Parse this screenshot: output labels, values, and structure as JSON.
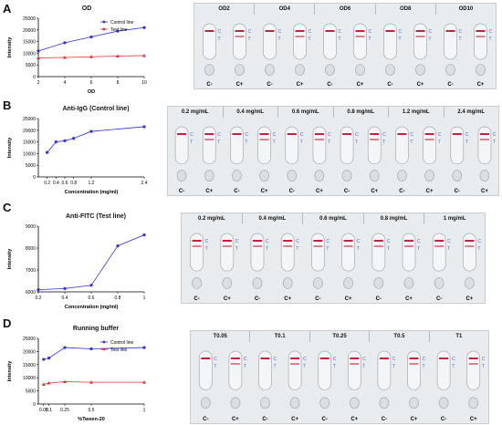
{
  "panels": [
    {
      "letter": "A",
      "chart_data": {
        "type": "line",
        "title": "OD",
        "xlabel": "OD",
        "ylabel": "Intensity",
        "x": [
          2,
          4,
          6,
          8,
          10
        ],
        "xticks": [
          "2",
          "4",
          "6",
          "8",
          "10"
        ],
        "xlim": [
          2,
          10
        ],
        "ylim": [
          0,
          25000
        ],
        "yticks": [
          "0",
          "5000",
          "10000",
          "15000",
          "20000",
          "25000"
        ],
        "legend": "top-right",
        "series": [
          {
            "name": "Control line",
            "color": "#2e2ee0",
            "marker": "circle",
            "values": [
              11000,
              14500,
              17000,
              19500,
              21000
            ]
          },
          {
            "name": "Test line",
            "color": "#e03030",
            "marker": "triangle",
            "values": [
              8000,
              8200,
              8500,
              8800,
              9000
            ]
          }
        ]
      },
      "strip_labels": [
        "OD2",
        "OD4",
        "OD6",
        "OD8",
        "OD10"
      ],
      "strip_bottom": [
        "C-",
        "C+",
        "C-",
        "C+",
        "C-",
        "C+",
        "C-",
        "C+",
        "C-",
        "C+"
      ]
    },
    {
      "letter": "B",
      "chart_data": {
        "type": "line",
        "title": "Anti-IgG (Control line)",
        "xlabel": "Concentration (mg/ml)",
        "ylabel": "Intensity",
        "x": [
          0.2,
          0.4,
          0.6,
          0.8,
          1.2,
          2.4
        ],
        "xticks": [
          "0.2",
          "0.4",
          "0.6",
          "0.8",
          "1.2",
          "2.4"
        ],
        "xlim": [
          0,
          2.4
        ],
        "ylim": [
          0,
          25000
        ],
        "yticks": [
          "0",
          "5000",
          "10000",
          "15000",
          "20000",
          "25000"
        ],
        "series": [
          {
            "name": "",
            "color": "#2e2ee0",
            "marker": "circle",
            "values": [
              10500,
              15000,
              15500,
              16500,
              19500,
              21500
            ]
          }
        ]
      },
      "strip_labels": [
        "0.2 mg/mL",
        "0.4 mg/mL",
        "0.6 mg/mL",
        "0.8 mg/mL",
        "1.2 mg/mL",
        "2.4 mg/mL"
      ],
      "strip_bottom": [
        "C-",
        "C+",
        "C-",
        "C+",
        "C-",
        "C+",
        "C-",
        "C+",
        "C-",
        "C+",
        "C-",
        "C+"
      ]
    },
    {
      "letter": "C",
      "chart_data": {
        "type": "line",
        "title": "Anti-FITC (Test line)",
        "xlabel": "Concentration (mg/ml)",
        "ylabel": "Intensity",
        "x": [
          0.2,
          0.4,
          0.6,
          0.8,
          1
        ],
        "xticks": [
          "0.2",
          "0.4",
          "0.6",
          "0.8",
          "1"
        ],
        "xlim": [
          0.2,
          1
        ],
        "ylim": [
          6000,
          9000
        ],
        "yticks": [
          "6000",
          "7000",
          "8000",
          "9000"
        ],
        "series": [
          {
            "name": "",
            "color": "#2e2ee0",
            "marker": "circle",
            "values": [
              6100,
              6150,
              6300,
              8100,
              8600
            ]
          }
        ]
      },
      "strip_labels": [
        "0.2 mg/mL",
        "0.4 mg/mL",
        "0.6 mg/mL",
        "0.8 mg/mL",
        "1 mg/mL"
      ],
      "strip_bottom": [
        "C-",
        "C+",
        "C-",
        "C+",
        "C-",
        "C+",
        "C-",
        "C+",
        "C-",
        "C+"
      ]
    },
    {
      "letter": "D",
      "chart_data": {
        "type": "line",
        "title": "Running buffer",
        "xlabel": "%Tween-20",
        "ylabel": "Intensity",
        "x": [
          0.05,
          0.1,
          0.25,
          0.5,
          1
        ],
        "xticks": [
          "0.05",
          "0.1",
          "0.25",
          "0.5",
          "1"
        ],
        "xlim": [
          0,
          1
        ],
        "ylim": [
          0,
          25000
        ],
        "yticks": [
          "0",
          "5000",
          "10000",
          "15000",
          "20000",
          "25000"
        ],
        "legend": "top-right",
        "series": [
          {
            "name": "Control line",
            "color": "#2e2ee0",
            "marker": "circle",
            "values": [
              17000,
              17500,
              21500,
              21000,
              21500
            ]
          },
          {
            "name": "Test line",
            "color": "#e03030",
            "marker": "triangle",
            "values": [
              7500,
              8000,
              8500,
              8300,
              8300
            ]
          }
        ]
      },
      "strip_labels": [
        "T0.05",
        "T0.1",
        "T0.25",
        "T0.5",
        "T1"
      ],
      "strip_bottom": [
        "C-",
        "C+",
        "C-",
        "C+",
        "C-",
        "C+",
        "C-",
        "C+",
        "C-",
        "C+"
      ]
    }
  ],
  "strip_marks": {
    "c": "C",
    "t": "T"
  },
  "colors": {
    "line_red": "#c8203a",
    "mark_blue": "#3a6fd0"
  }
}
